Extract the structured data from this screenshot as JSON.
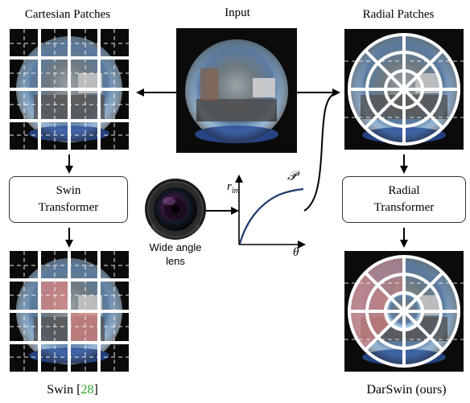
{
  "labels": {
    "cartesian_title": "Cartesian Patches",
    "input_title": "Input",
    "radial_title": "Radial Patches",
    "lens_caption_line1": "Wide angle",
    "lens_caption_line2": "lens",
    "swin_box_line1": "Swin",
    "swin_box_line2": "Transformer",
    "radial_box_line1": "Radial",
    "radial_box_line2": "Transformer",
    "swin_caption": "Swin [",
    "swin_caption_ref": "28",
    "swin_caption_end": "]",
    "darswin_caption": "DarSwin (ours)"
  },
  "plot": {
    "ylabel_base": "r",
    "ylabel_sub": "im",
    "xlabel": "θ",
    "curve_label": "𝒫"
  },
  "colors": {
    "citation": "#2aa62a",
    "grid_line": "#ffffff",
    "highlight": "#d98585",
    "arrow": "#000000"
  }
}
